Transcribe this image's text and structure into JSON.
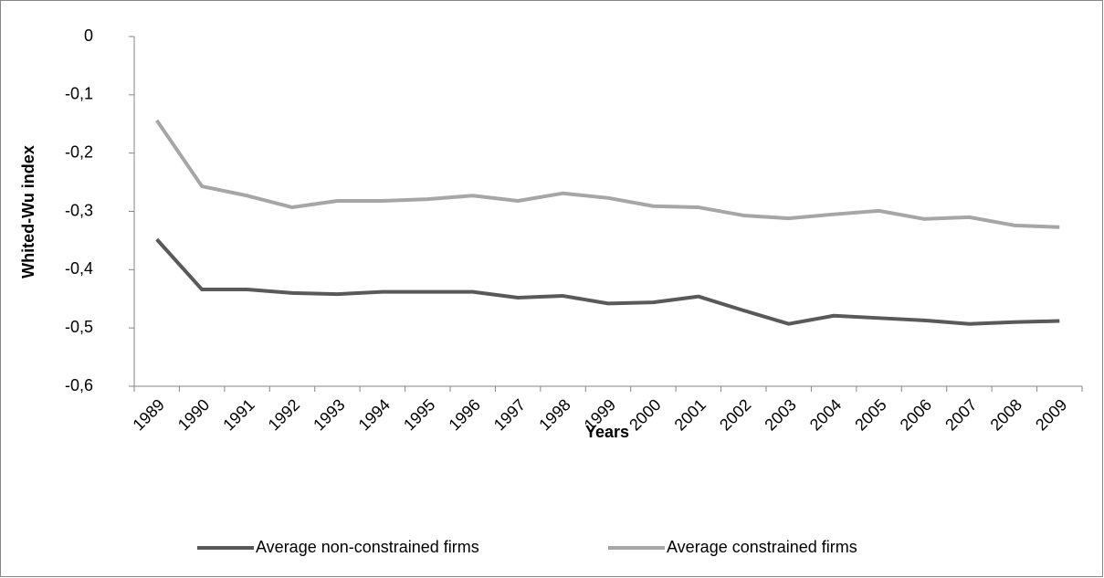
{
  "chart_data": {
    "type": "line",
    "x_label": "Years",
    "y_label": "Whited-Wu index",
    "categories": [
      "1989",
      "1990",
      "1991",
      "1992",
      "1993",
      "1994",
      "1995",
      "1996",
      "1997",
      "1998",
      "1999",
      "2000",
      "2001",
      "2002",
      "2003",
      "2004",
      "2005",
      "2006",
      "2007",
      "2008",
      "2009"
    ],
    "series": [
      {
        "name": "Average non-constrained firms",
        "color": "#595959",
        "values": [
          -0.348,
          -0.434,
          -0.434,
          -0.44,
          -0.442,
          -0.438,
          -0.438,
          -0.438,
          -0.448,
          -0.445,
          -0.458,
          -0.456,
          -0.446,
          -0.47,
          -0.493,
          -0.479,
          -0.483,
          -0.487,
          -0.493,
          -0.49,
          -0.488
        ]
      },
      {
        "name": "Average constrained firms",
        "color": "#a6a6a6",
        "values": [
          -0.144,
          -0.257,
          -0.273,
          -0.293,
          -0.282,
          -0.282,
          -0.279,
          -0.273,
          -0.282,
          -0.269,
          -0.277,
          -0.291,
          -0.293,
          -0.307,
          -0.312,
          -0.305,
          -0.299,
          -0.313,
          -0.31,
          -0.324,
          -0.327
        ]
      }
    ],
    "ylim": [
      -0.6,
      0
    ],
    "yticks": [
      {
        "value": -0.6,
        "label": "-0,6"
      },
      {
        "value": -0.5,
        "label": "-0,5"
      },
      {
        "value": -0.4,
        "label": "-0,4"
      },
      {
        "value": -0.3,
        "label": "-0,3"
      },
      {
        "value": -0.2,
        "label": "-0,2"
      },
      {
        "value": -0.1,
        "label": "-0,1"
      },
      0
    ],
    "grid": false,
    "legend": "bottom"
  }
}
